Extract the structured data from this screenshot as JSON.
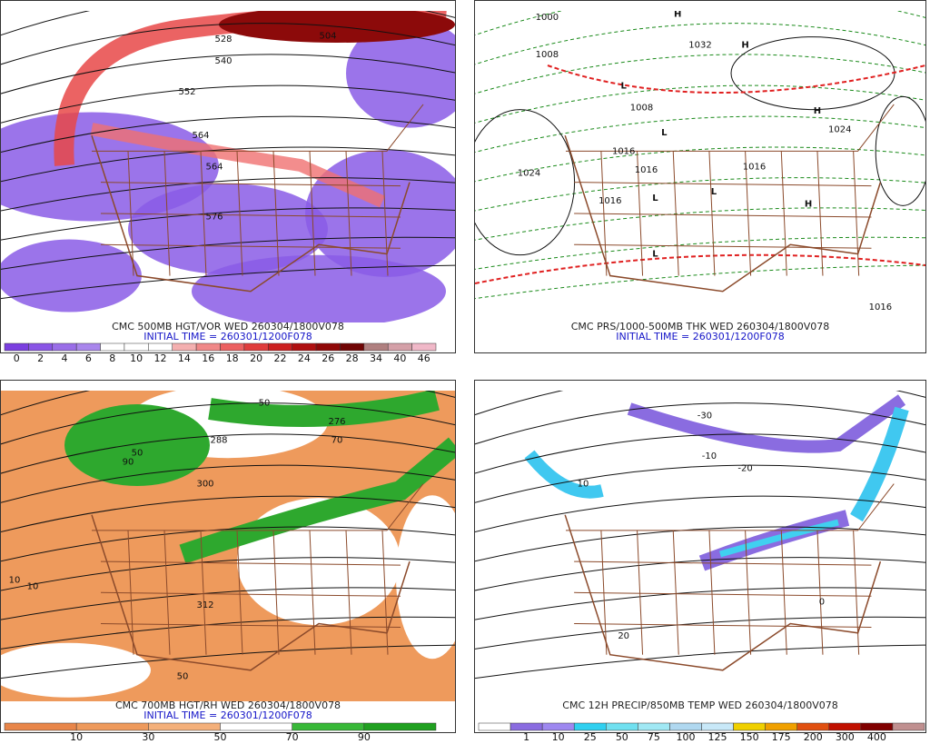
{
  "panels": [
    {
      "caption": "CMC 500MB HGT/VOR WED 260304/1800V078",
      "initial_time": "INITIAL TIME = 260301/1200F078",
      "colorbar": {
        "labels": [
          "0",
          "2",
          "4",
          "6",
          "8",
          "10",
          "12",
          "14",
          "16",
          "18",
          "20",
          "22",
          "24",
          "26",
          "28",
          "34",
          "40",
          "46"
        ],
        "colors": [
          "#7b3fe0",
          "#8a55e6",
          "#9a6ee8",
          "#a986ec",
          "#ffffff",
          "#ffffff",
          "#ffffff",
          "#f4b0b0",
          "#f08888",
          "#ec6060",
          "#e03c3c",
          "#cc2020",
          "#b01010",
          "#900808",
          "#700404",
          "#b08080",
          "#d4a0a8",
          "#f0b8c8"
        ]
      },
      "map_labels": [
        {
          "text": "504"
        },
        {
          "text": "528"
        },
        {
          "text": "540"
        },
        {
          "text": "552"
        },
        {
          "text": "564"
        },
        {
          "text": "564"
        },
        {
          "text": "576"
        }
      ]
    },
    {
      "caption": "CMC PRS/1000-500MB THK WED 260304/1800V078",
      "initial_time": "INITIAL TIME = 260301/1200F078",
      "map_labels": [
        {
          "text": "1000"
        },
        {
          "text": "1008"
        },
        {
          "text": "1032"
        },
        {
          "text": "1008"
        },
        {
          "text": "1016"
        },
        {
          "text": "1016"
        },
        {
          "text": "1024"
        },
        {
          "text": "1016"
        },
        {
          "text": "1024"
        },
        {
          "text": "1016"
        },
        {
          "text": "1016"
        },
        {
          "text": "L",
          "color": "#e00000"
        },
        {
          "text": "L",
          "color": "#e00000"
        },
        {
          "text": "L",
          "color": "#e00000"
        },
        {
          "text": "L",
          "color": "#e00000"
        },
        {
          "text": "L",
          "color": "#e00000"
        },
        {
          "text": "H",
          "color": "#20a8d8"
        },
        {
          "text": "H",
          "color": "#20a8d8"
        },
        {
          "text": "H",
          "color": "#20a8d8"
        },
        {
          "text": "H",
          "color": "#20a8d8"
        }
      ]
    },
    {
      "caption": "CMC 700MB HGT/RH WED 260304/1800V078",
      "initial_time": "INITIAL TIME = 260301/1200F078",
      "colorbar": {
        "labels": [
          "10",
          "30",
          "50",
          "70",
          "90"
        ],
        "colors": [
          "#e8864a",
          "#ee9a5c",
          "#f4b07a",
          "#ffffff",
          "#38b838",
          "#20a020"
        ]
      },
      "map_labels": [
        {
          "text": "276"
        },
        {
          "text": "288"
        },
        {
          "text": "300"
        },
        {
          "text": "312"
        },
        {
          "text": "50"
        },
        {
          "text": "50"
        },
        {
          "text": "10"
        },
        {
          "text": "10"
        },
        {
          "text": "90"
        },
        {
          "text": "70"
        },
        {
          "text": "50"
        }
      ]
    },
    {
      "caption": "CMC 12H PRECIP/850MB TEMP WED 260304/1800V078",
      "colorbar": {
        "labels": [
          "1",
          "10",
          "25",
          "50",
          "75",
          "100",
          "125",
          "150",
          "175",
          "200",
          "300",
          "400"
        ],
        "colors": [
          "#ffffff",
          "#8a6ce0",
          "#9e88f0",
          "#30d0f0",
          "#70e0f0",
          "#a0e8f4",
          "#b0d8f0",
          "#c8e8f8",
          "#f0d000",
          "#f0a000",
          "#e05010",
          "#c01000",
          "#800000",
          "#c09090"
        ]
      },
      "map_labels": [
        {
          "text": "-10"
        },
        {
          "text": "-20"
        },
        {
          "text": "-30"
        },
        {
          "text": "10"
        },
        {
          "text": "20"
        },
        {
          "text": "0"
        }
      ]
    }
  ]
}
